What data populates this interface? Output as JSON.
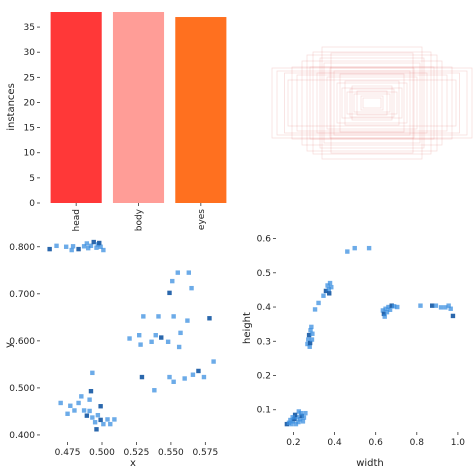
{
  "chart_data": [
    {
      "type": "bar",
      "categories": [
        "head",
        "body",
        "eyes"
      ],
      "values": [
        38,
        38,
        37
      ],
      "colors": [
        "#ff3838",
        "#ff9d97",
        "#ff701f"
      ],
      "ylabel": "instances",
      "ylim": [
        0,
        38
      ],
      "yticks": [
        0,
        5,
        10,
        15,
        20,
        25,
        30,
        35
      ],
      "grid": false
    },
    {
      "type": "heatmap",
      "description_color": "#d9534f"
    },
    {
      "type": "scatter",
      "xlabel": "x",
      "ylabel": "y",
      "xlim": [
        0.455,
        0.59
      ],
      "ylim": [
        0.385,
        0.825
      ],
      "xticks": [
        0.475,
        0.5,
        0.525,
        0.55,
        0.575
      ],
      "yticks": [
        0.4,
        0.5,
        0.6,
        0.7,
        0.8
      ],
      "color": "#3b8fe0",
      "points": [
        [
          0.462,
          0.795
        ],
        [
          0.467,
          0.802
        ],
        [
          0.474,
          0.8
        ],
        [
          0.478,
          0.793
        ],
        [
          0.479,
          0.801
        ],
        [
          0.483,
          0.795
        ],
        [
          0.487,
          0.801
        ],
        [
          0.489,
          0.807
        ],
        [
          0.49,
          0.797
        ],
        [
          0.492,
          0.802
        ],
        [
          0.494,
          0.81
        ],
        [
          0.496,
          0.798
        ],
        [
          0.497,
          0.805
        ],
        [
          0.499,
          0.8
        ],
        [
          0.501,
          0.793
        ],
        [
          0.498,
          0.808
        ],
        [
          0.555,
          0.745
        ],
        [
          0.563,
          0.745
        ],
        [
          0.551,
          0.727
        ],
        [
          0.565,
          0.712
        ],
        [
          0.549,
          0.702
        ],
        [
          0.53,
          0.652
        ],
        [
          0.541,
          0.652
        ],
        [
          0.552,
          0.652
        ],
        [
          0.562,
          0.643
        ],
        [
          0.578,
          0.648
        ],
        [
          0.52,
          0.605
        ],
        [
          0.527,
          0.612
        ],
        [
          0.536,
          0.598
        ],
        [
          0.539,
          0.612
        ],
        [
          0.543,
          0.607
        ],
        [
          0.548,
          0.598
        ],
        [
          0.557,
          0.617
        ],
        [
          0.528,
          0.592
        ],
        [
          0.556,
          0.587
        ],
        [
          0.529,
          0.523
        ],
        [
          0.549,
          0.523
        ],
        [
          0.552,
          0.513
        ],
        [
          0.56,
          0.52
        ],
        [
          0.566,
          0.528
        ],
        [
          0.57,
          0.536
        ],
        [
          0.574,
          0.523
        ],
        [
          0.581,
          0.556
        ],
        [
          0.538,
          0.495
        ],
        [
          0.493,
          0.532
        ],
        [
          0.492,
          0.493
        ],
        [
          0.47,
          0.468
        ],
        [
          0.477,
          0.462
        ],
        [
          0.483,
          0.468
        ],
        [
          0.487,
          0.452
        ],
        [
          0.489,
          0.441
        ],
        [
          0.491,
          0.451
        ],
        [
          0.493,
          0.437
        ],
        [
          0.495,
          0.427
        ],
        [
          0.497,
          0.442
        ],
        [
          0.499,
          0.432
        ],
        [
          0.501,
          0.423
        ],
        [
          0.504,
          0.433
        ],
        [
          0.506,
          0.423
        ],
        [
          0.491,
          0.475
        ],
        [
          0.499,
          0.461
        ],
        [
          0.509,
          0.433
        ],
        [
          0.48,
          0.452
        ],
        [
          0.475,
          0.445
        ],
        [
          0.485,
          0.482
        ],
        [
          0.496,
          0.412
        ]
      ]
    },
    {
      "type": "scatter",
      "xlabel": "width",
      "ylabel": "height",
      "xlim": [
        0.115,
        1.02
      ],
      "ylim": [
        0.035,
        0.625
      ],
      "xticks": [
        0.2,
        0.4,
        0.6,
        0.8,
        1.0
      ],
      "yticks": [
        0.1,
        0.2,
        0.3,
        0.4,
        0.5,
        0.6
      ],
      "color": "#3b8fe0",
      "points": [
        [
          0.168,
          0.058
        ],
        [
          0.178,
          0.062
        ],
        [
          0.185,
          0.07
        ],
        [
          0.19,
          0.058
        ],
        [
          0.198,
          0.066
        ],
        [
          0.205,
          0.073
        ],
        [
          0.212,
          0.058
        ],
        [
          0.218,
          0.078
        ],
        [
          0.224,
          0.064
        ],
        [
          0.232,
          0.072
        ],
        [
          0.24,
          0.082
        ],
        [
          0.246,
          0.066
        ],
        [
          0.236,
          0.09
        ],
        [
          0.226,
          0.095
        ],
        [
          0.251,
          0.077
        ],
        [
          0.208,
          0.085
        ],
        [
          0.196,
          0.078
        ],
        [
          0.258,
          0.09
        ],
        [
          0.268,
          0.292
        ],
        [
          0.272,
          0.305
        ],
        [
          0.276,
          0.318
        ],
        [
          0.279,
          0.284
        ],
        [
          0.283,
          0.332
        ],
        [
          0.287,
          0.342
        ],
        [
          0.292,
          0.322
        ],
        [
          0.281,
          0.295
        ],
        [
          0.29,
          0.305
        ],
        [
          0.305,
          0.393
        ],
        [
          0.322,
          0.412
        ],
        [
          0.346,
          0.433
        ],
        [
          0.358,
          0.447
        ],
        [
          0.366,
          0.463
        ],
        [
          0.372,
          0.452
        ],
        [
          0.378,
          0.47
        ],
        [
          0.384,
          0.458
        ],
        [
          0.374,
          0.44
        ],
        [
          0.462,
          0.562
        ],
        [
          0.498,
          0.572
        ],
        [
          0.568,
          0.572
        ],
        [
          0.635,
          0.39
        ],
        [
          0.64,
          0.38
        ],
        [
          0.648,
          0.395
        ],
        [
          0.655,
          0.385
        ],
        [
          0.662,
          0.4
        ],
        [
          0.67,
          0.392
        ],
        [
          0.678,
          0.404
        ],
        [
          0.69,
          0.402
        ],
        [
          0.705,
          0.4
        ],
        [
          0.644,
          0.372
        ],
        [
          0.818,
          0.404
        ],
        [
          0.875,
          0.404
        ],
        [
          0.893,
          0.404
        ],
        [
          0.918,
          0.399
        ],
        [
          0.939,
          0.399
        ],
        [
          0.955,
          0.404
        ],
        [
          0.976,
          0.374
        ],
        [
          0.965,
          0.395
        ]
      ]
    }
  ]
}
